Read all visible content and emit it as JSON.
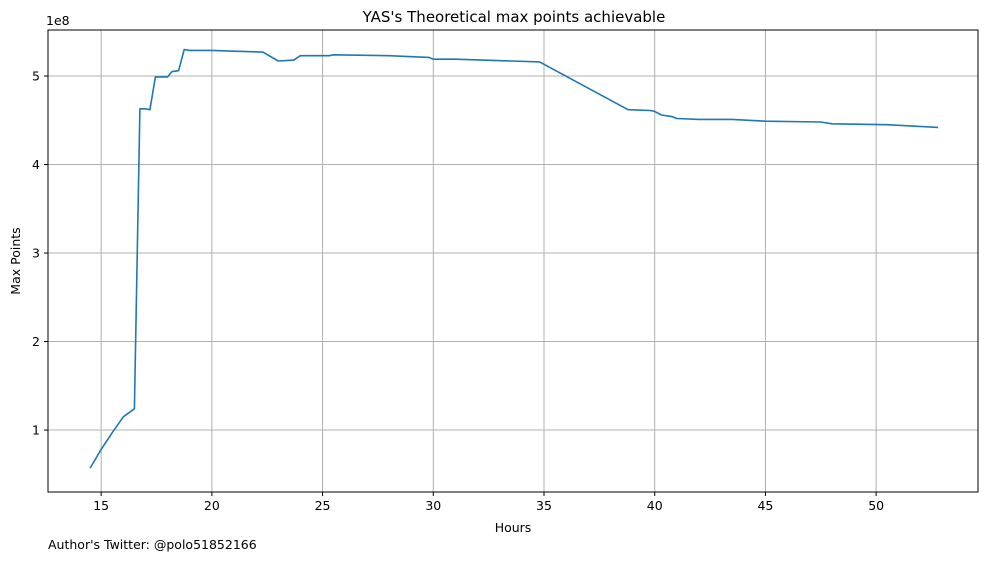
{
  "chart_data": {
    "type": "line",
    "title": "YAS's Theoretical max points achievable",
    "xlabel": "Hours",
    "ylabel": "Max Points",
    "y_offset_label": "1e8",
    "xlim": [
      12.6,
      54.6
    ],
    "ylim": [
      0.3,
      5.52
    ],
    "y_scale_note": "values in units of 1e8",
    "grid": true,
    "legend": "none",
    "x_ticks": [
      15,
      20,
      25,
      30,
      35,
      40,
      45,
      50
    ],
    "x_tick_labels": [
      "15",
      "20",
      "25",
      "30",
      "35",
      "40",
      "45",
      "50"
    ],
    "y_ticks": [
      1,
      2,
      3,
      4,
      5
    ],
    "y_tick_labels": [
      "1",
      "2",
      "3",
      "4",
      "5"
    ],
    "series": [
      {
        "color": "#1f77b4",
        "points": [
          [
            14.5,
            0.57
          ],
          [
            15.0,
            0.78
          ],
          [
            15.5,
            0.97
          ],
          [
            16.0,
            1.15
          ],
          [
            16.5,
            1.24
          ],
          [
            16.75,
            4.63
          ],
          [
            17.0,
            4.63
          ],
          [
            17.2,
            4.62
          ],
          [
            17.45,
            4.99
          ],
          [
            18.0,
            4.99
          ],
          [
            18.2,
            5.05
          ],
          [
            18.5,
            5.06
          ],
          [
            18.75,
            5.3
          ],
          [
            19.0,
            5.29
          ],
          [
            20.0,
            5.29
          ],
          [
            21.0,
            5.28
          ],
          [
            22.3,
            5.27
          ],
          [
            23.0,
            5.17
          ],
          [
            23.7,
            5.18
          ],
          [
            24.0,
            5.23
          ],
          [
            25.3,
            5.23
          ],
          [
            25.5,
            5.24
          ],
          [
            28.0,
            5.23
          ],
          [
            29.8,
            5.21
          ],
          [
            30.0,
            5.19
          ],
          [
            31.0,
            5.19
          ],
          [
            34.8,
            5.16
          ],
          [
            38.8,
            4.62
          ],
          [
            39.8,
            4.61
          ],
          [
            40.0,
            4.6
          ],
          [
            40.3,
            4.56
          ],
          [
            40.8,
            4.54
          ],
          [
            41.0,
            4.52
          ],
          [
            42.0,
            4.51
          ],
          [
            43.5,
            4.51
          ],
          [
            45.0,
            4.49
          ],
          [
            47.5,
            4.48
          ],
          [
            48.0,
            4.46
          ],
          [
            50.5,
            4.45
          ],
          [
            52.8,
            4.42
          ]
        ]
      }
    ],
    "footnote": "Author's Twitter: @polo51852166"
  }
}
